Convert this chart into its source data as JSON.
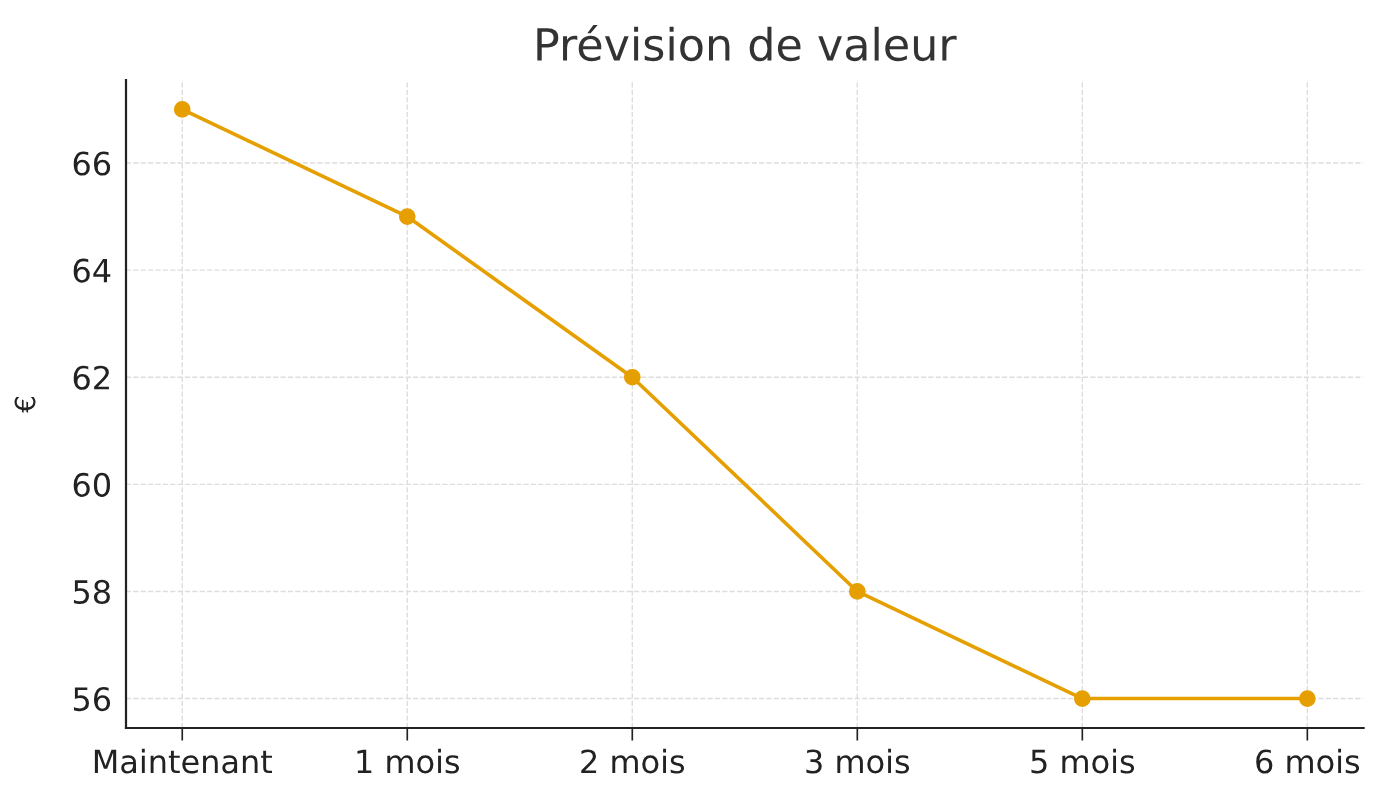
{
  "chart_data": {
    "type": "line",
    "title": "Prévision de valeur",
    "ylabel": "€",
    "categories": [
      "Maintenant",
      "1 mois",
      "2 mois",
      "3 mois",
      "5 mois",
      "6 mois"
    ],
    "series": [
      {
        "color": "#e69f00",
        "values": [
          67,
          65,
          62,
          58,
          56,
          56
        ]
      }
    ],
    "ylim": [
      55.45,
      67.55
    ],
    "yticks": [
      56,
      58,
      60,
      62,
      64,
      66
    ],
    "grid": true,
    "marker": "circle",
    "line_style": "solid"
  }
}
